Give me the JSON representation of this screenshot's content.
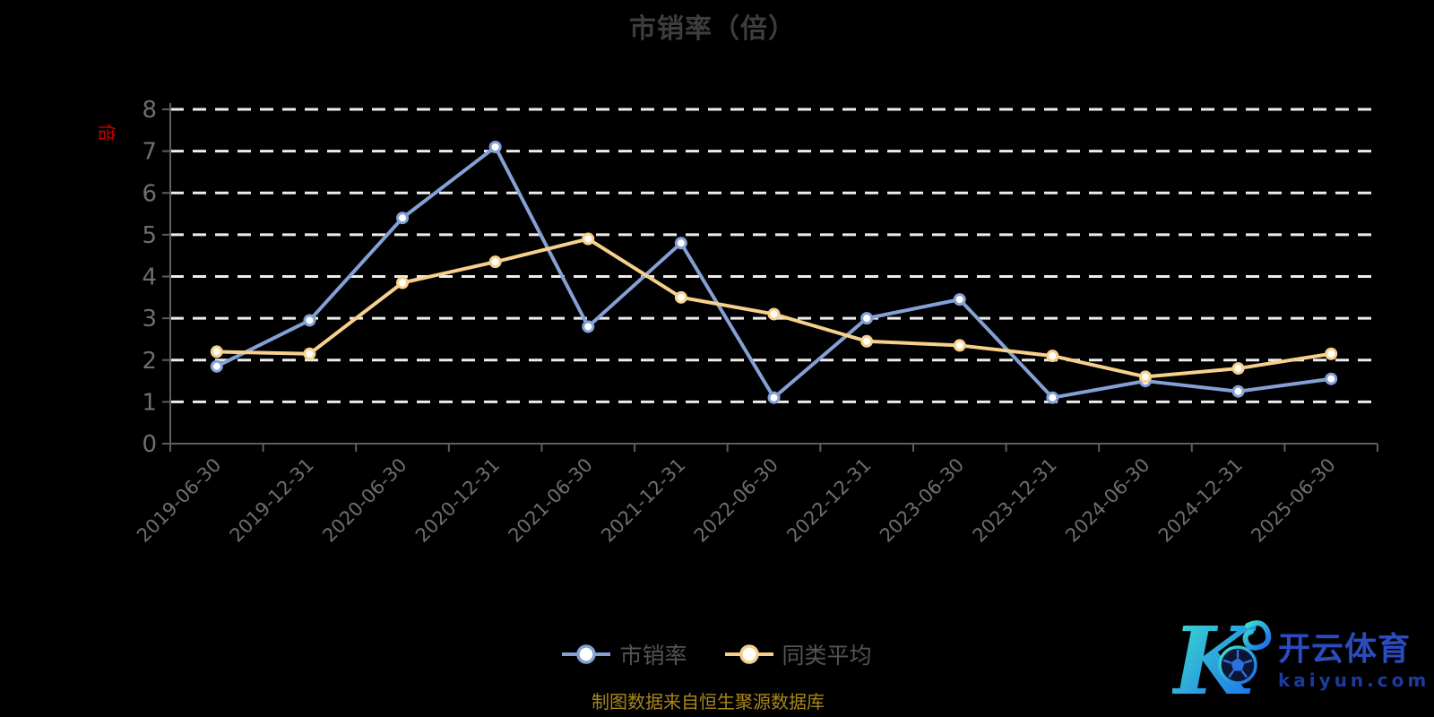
{
  "title": {
    "text": "市销率（倍）"
  },
  "y_axis_name": {
    "text": "倍"
  },
  "chart_data": {
    "type": "line",
    "title": "市销率（倍）",
    "categories": [
      "2019-06-30",
      "2019-12-31",
      "2020-06-30",
      "2020-12-31",
      "2021-06-30",
      "2021-12-31",
      "2022-06-30",
      "2022-12-31",
      "2023-06-30",
      "2023-12-31",
      "2024-06-30",
      "2024-12-31",
      "2025-06-30"
    ],
    "series": [
      {
        "name": "市销率",
        "color": "#84a1d6",
        "values": [
          1.85,
          2.95,
          5.4,
          7.1,
          2.8,
          4.8,
          1.1,
          3.0,
          3.45,
          1.1,
          1.5,
          1.25,
          1.55
        ]
      },
      {
        "name": "同类平均",
        "color": "#f7d18c",
        "values": [
          2.2,
          2.15,
          3.85,
          4.35,
          4.9,
          3.5,
          3.1,
          2.45,
          2.35,
          2.1,
          1.6,
          1.8,
          2.15
        ]
      }
    ],
    "xlabel": "",
    "ylabel": "倍",
    "ylim": [
      0,
      8
    ],
    "y_ticks": [
      0,
      1,
      2,
      3,
      4,
      5,
      6,
      7,
      8
    ],
    "grid": "horizontal-dashed",
    "legend_position": "bottom",
    "marker": "circle-white-fill"
  },
  "legend": {
    "items": [
      {
        "label": "市销率",
        "color": "#84a1d6"
      },
      {
        "label": "同类平均",
        "color": "#f7d18c"
      }
    ]
  },
  "footer": {
    "source_text": "制图数据来自恒生聚源数据库"
  },
  "logo": {
    "monogram": "K",
    "brand_name": "开云体育",
    "domain": "kaiyun.com"
  },
  "colors": {
    "background": "#000000",
    "title": "#3d3d3d",
    "axis_line": "#5e5e5e",
    "tick_label": "#6e6e6e",
    "gridline": "#ededed",
    "legend_text": "#545454",
    "source_text": "#a8871c",
    "axis_name_red": "#cc0000",
    "logo_cn_blue": "#2a4cc0",
    "logo_domain_blue": "#1c3ba0",
    "logo_gradient_start": "#3ee6c6",
    "logo_gradient_end": "#1a67f2"
  }
}
